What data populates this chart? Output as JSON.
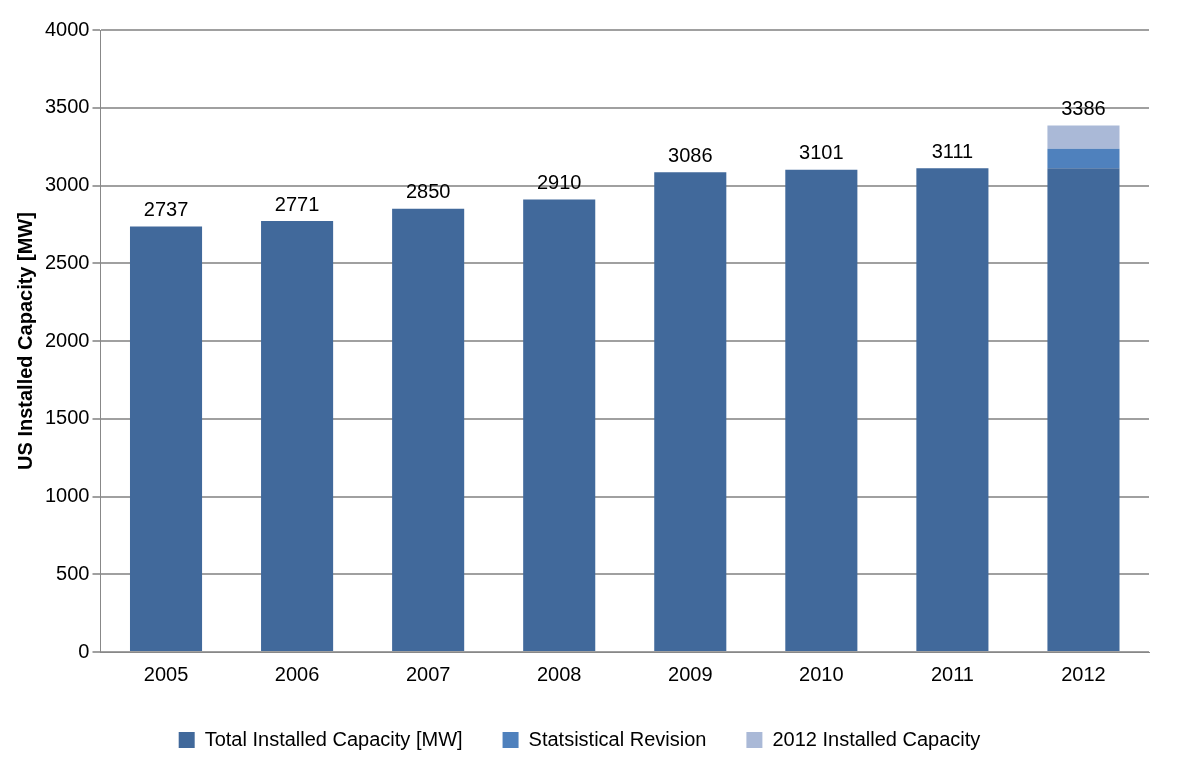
{
  "chart_data": {
    "type": "bar",
    "stacked": true,
    "ylabel": "US Installed Capacity [MW]",
    "categories": [
      "2005",
      "2006",
      "2007",
      "2008",
      "2009",
      "2010",
      "2011",
      "2012"
    ],
    "series": [
      {
        "name": "Total Installed Capacity [MW]",
        "color": "#41699b",
        "values": [
          2737,
          2771,
          2850,
          2910,
          3086,
          3101,
          3111,
          3111
        ]
      },
      {
        "name": "Statsistical Revision",
        "color": "#4f81bd",
        "values": [
          null,
          null,
          null,
          null,
          null,
          null,
          null,
          125
        ]
      },
      {
        "name": "2012 Installed Capacity",
        "color": "#aab9d7",
        "values": [
          null,
          null,
          null,
          null,
          null,
          null,
          null,
          150
        ]
      }
    ],
    "totals": [
      "2737",
      "2771",
      "2850",
      "2910",
      "3086",
      "3101",
      "3111",
      "3386"
    ],
    "ylim": [
      0,
      4000
    ],
    "yticks": [
      0,
      500,
      1000,
      1500,
      2000,
      2500,
      3000,
      3500,
      4000
    ],
    "grid": "y",
    "legend": "bottom"
  }
}
